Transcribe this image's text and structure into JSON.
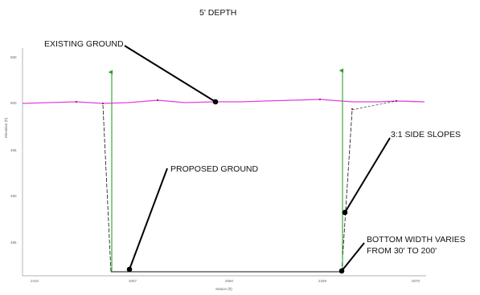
{
  "title": "5' DEPTH",
  "annotations": {
    "existing_ground": "EXISTING GROUND",
    "proposed_ground": "PROPOSED GROUND",
    "side_slopes": "3:1 SIDE SLOPES",
    "bottom_width_line1": "BOTTOM WIDTH VARIES",
    "bottom_width_line2": "FROM 30' TO 200'"
  },
  "axes": {
    "x_label": "Station (ft)",
    "y_label": "Elevation (ft)",
    "x_ticks": [
      "2410",
      "2057",
      "2060",
      "2259",
      "2070"
    ],
    "y_ticks": [
      "550",
      "500",
      "495",
      "490",
      "485"
    ]
  },
  "colors": {
    "existing_ground": "#e040e0",
    "vertical_marker": "#2e9e2e",
    "proposed_ground": "#000000",
    "leader": "#000000"
  }
}
